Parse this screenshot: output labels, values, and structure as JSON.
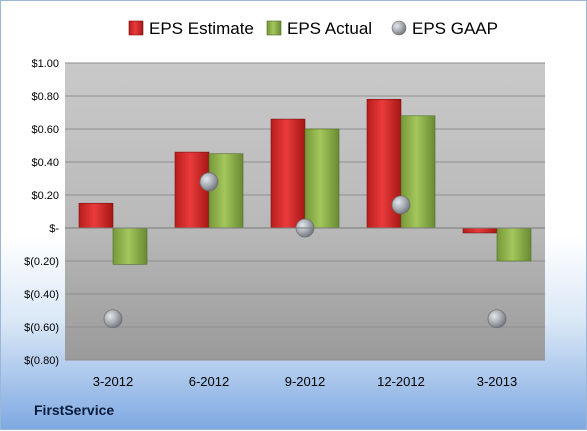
{
  "company": "FirstService",
  "colors": {
    "estimate": "#d42a2a",
    "actual": "#8db04a",
    "gaap": "#a7acb3",
    "plot_bg": "#b8b8b8",
    "grid": "#8f8f8f"
  },
  "chart_data": {
    "type": "bar",
    "categories": [
      "3-2012",
      "6-2012",
      "9-2012",
      "12-2012",
      "3-2013"
    ],
    "series": [
      {
        "name": "EPS Estimate",
        "values": [
          0.15,
          0.46,
          0.66,
          0.78,
          -0.03
        ]
      },
      {
        "name": "EPS Actual",
        "values": [
          -0.22,
          0.45,
          0.6,
          0.68,
          -0.2
        ]
      },
      {
        "name": "EPS GAAP",
        "values": [
          -0.55,
          0.28,
          0.0,
          0.14,
          -0.55
        ],
        "marker": "circle"
      }
    ],
    "y_ticks": [
      "$1.00",
      "$0.80",
      "$0.60",
      "$0.40",
      "$0.20",
      "$-",
      "$(0.20)",
      "$(0.40)",
      "$(0.60)",
      "$(0.80)"
    ],
    "ylim": [
      -0.8,
      1.0
    ],
    "y_step": 0.2,
    "grid": true,
    "legend_position": "top"
  }
}
